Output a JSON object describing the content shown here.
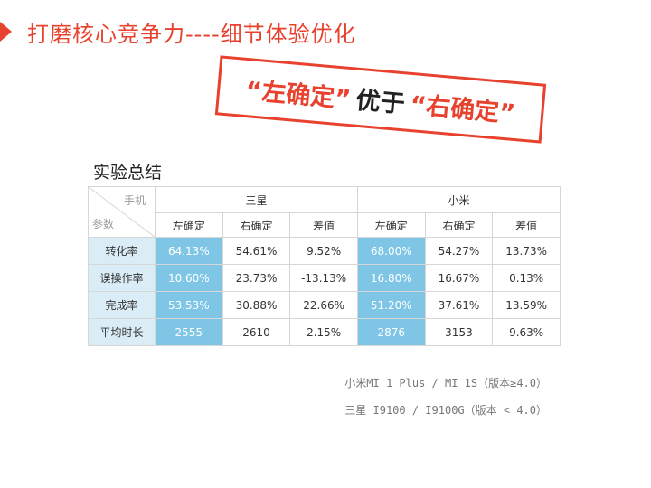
{
  "slide": {
    "title": "打磨核心竞争力----细节体验优化",
    "stamp": {
      "part1": "“左确定”",
      "part2": "优于",
      "part3": "“右确定”"
    },
    "section_title": "实验总结"
  },
  "table": {
    "corner_top": "手机",
    "corner_bottom": "参数",
    "groups": [
      "三星",
      "小米"
    ],
    "subheaders": [
      "左确定",
      "右确定",
      "差值",
      "左确定",
      "右确定",
      "差值"
    ],
    "rows": [
      {
        "label": "转化率",
        "cells": [
          "64.13%",
          "54.61%",
          "9.52%",
          "68.00%",
          "54.27%",
          "13.73%"
        ]
      },
      {
        "label": "误操作率",
        "cells": [
          "10.60%",
          "23.73%",
          "-13.13%",
          "16.80%",
          "16.67%",
          "0.13%"
        ]
      },
      {
        "label": "完成率",
        "cells": [
          "53.53%",
          "30.88%",
          "22.66%",
          "51.20%",
          "37.61%",
          "13.59%"
        ]
      },
      {
        "label": "平均时长",
        "cells": [
          "2555",
          "2610",
          "2.15%",
          "2876",
          "3153",
          "9.63%"
        ]
      }
    ]
  },
  "footnotes": [
    "小米MI 1 Plus / MI 1S（版本≥4.0）",
    "三星 I9100 / I9100G（版本 < 4.0）"
  ],
  "colors": {
    "accent": "#e8412e",
    "highlight": "#7fc6e6",
    "row_label_bg": "#daedf7"
  }
}
